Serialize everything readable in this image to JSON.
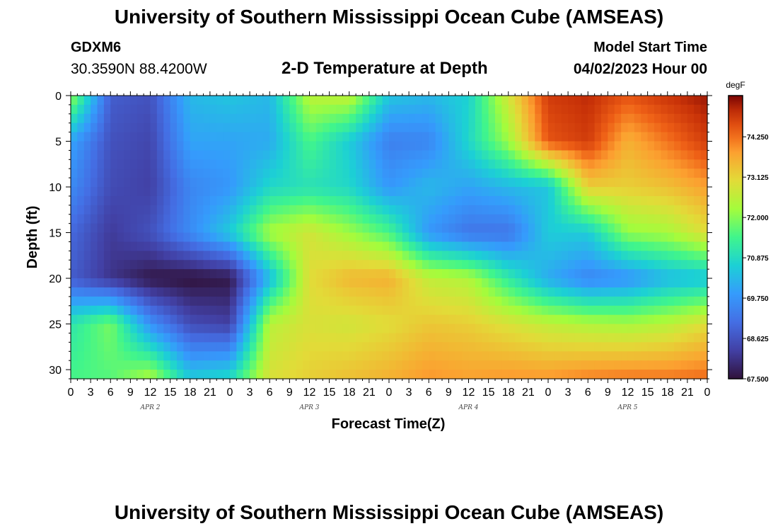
{
  "header": {
    "title": "University of Southern Mississippi Ocean Cube (AMSEAS)",
    "station": "GDXM6",
    "coords": "30.3590N  88.4200W",
    "chart_title": "2-D Temperature at Depth",
    "start_label": "Model Start Time",
    "start_value": "04/02/2023 Hour 00"
  },
  "footer": {
    "title": "University of Southern Mississippi Ocean Cube (AMSEAS)"
  },
  "chart_data": {
    "type": "heatmap",
    "title": "2-D Temperature at Depth",
    "xlabel": "Forecast Time(Z)",
    "ylabel": "Depth (ft)",
    "colorbar_unit": "degF",
    "x_tick_labels": [
      "0",
      "3",
      "6",
      "9",
      "12",
      "15",
      "18",
      "21",
      "0",
      "3",
      "6",
      "9",
      "12",
      "15",
      "18",
      "21",
      "0",
      "3",
      "6",
      "9",
      "12",
      "15",
      "18",
      "21",
      "0",
      "3",
      "6",
      "9",
      "12",
      "15",
      "18",
      "21",
      "0"
    ],
    "x_date_labels": [
      "APR 2",
      "APR 3",
      "APR 4",
      "APR 5"
    ],
    "y_ticks": [
      0,
      5,
      10,
      15,
      20,
      25,
      30
    ],
    "ylim": [
      0,
      31
    ],
    "xlim_hours": [
      0,
      96
    ],
    "colorbar_ticks": [
      "74.250",
      "73.125",
      "72.000",
      "70.875",
      "69.750",
      "68.625",
      "67.500"
    ],
    "color_range": [
      67.5,
      75.4
    ],
    "grid_hours": [
      0,
      6,
      12,
      18,
      24,
      30,
      36,
      42,
      48,
      54,
      60,
      66,
      72,
      78,
      84,
      90,
      96
    ],
    "grid_depths": [
      0,
      5,
      10,
      15,
      20,
      25,
      31
    ],
    "values": [
      [
        72.2,
        68.8,
        68.6,
        70.3,
        70.5,
        70.3,
        72.5,
        72.6,
        70.5,
        70.3,
        70.7,
        72.8,
        74.8,
        75.0,
        74.5,
        74.9,
        75.2
      ],
      [
        70.0,
        68.6,
        68.4,
        70.0,
        70.0,
        70.1,
        71.5,
        70.6,
        69.4,
        69.5,
        70.8,
        72.2,
        74.5,
        74.8,
        73.6,
        74.2,
        74.8
      ],
      [
        69.6,
        68.5,
        68.3,
        69.5,
        69.8,
        70.8,
        71.0,
        70.8,
        69.8,
        70.3,
        70.0,
        70.3,
        70.5,
        73.2,
        73.2,
        73.4,
        73.8
      ],
      [
        69.0,
        68.2,
        68.6,
        69.6,
        70.6,
        72.3,
        72.8,
        72.2,
        71.5,
        69.8,
        69.2,
        69.2,
        70.6,
        70.6,
        72.1,
        72.3,
        73.0
      ],
      [
        68.8,
        68.1,
        67.6,
        67.5,
        67.6,
        70.3,
        73.0,
        73.5,
        73.6,
        72.6,
        72.4,
        71.2,
        70.1,
        69.5,
        69.7,
        70.3,
        70.5
      ],
      [
        71.1,
        71.9,
        69.7,
        68.5,
        68.3,
        72.5,
        72.9,
        72.8,
        73.0,
        73.3,
        73.2,
        72.9,
        72.6,
        72.4,
        72.3,
        72.5,
        73.0
      ],
      [
        71.5,
        71.6,
        72.4,
        70.6,
        70.9,
        72.9,
        73.2,
        73.4,
        73.6,
        73.9,
        73.8,
        73.9,
        73.9,
        74.1,
        74.2,
        74.2,
        74.3
      ]
    ]
  }
}
